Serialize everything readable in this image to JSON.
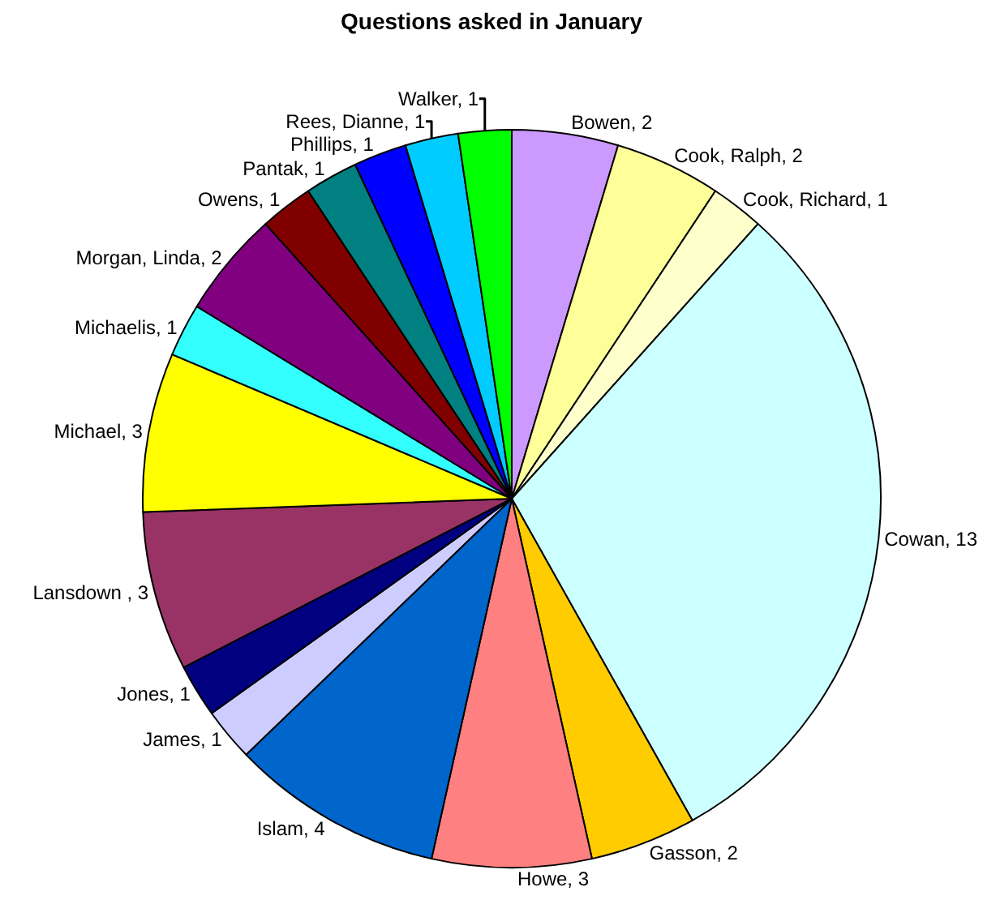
{
  "chart_data": {
    "type": "pie",
    "title": "Questions asked in January",
    "categories": [
      "Bowen, 2",
      "Cook, Ralph, 2",
      "Cook, Richard, 1",
      "Cowan, 13",
      "Gasson, 2",
      "Howe, 3",
      "Islam, 4",
      "James, 1",
      "Jones, 1",
      "Lansdown , 3",
      "Michael, 3",
      "Michaelis, 1",
      "Morgan, Linda, 2",
      "Owens, 1",
      "Pantak, 1",
      "Phillips, 1",
      "Rees, Dianne, 1",
      "Walker, 1"
    ],
    "values": [
      2,
      2,
      1,
      13,
      2,
      3,
      4,
      1,
      1,
      3,
      3,
      1,
      2,
      1,
      1,
      1,
      1,
      1
    ],
    "colors": [
      "#cc99ff",
      "#ffff99",
      "#ffffcc",
      "#ccffff",
      "#ffcc00",
      "#ff8080",
      "#0066cc",
      "#ccccff",
      "#000080",
      "#993366",
      "#ffff00",
      "#33ffff",
      "#800080",
      "#800000",
      "#008080",
      "#0000ff",
      "#00ccff",
      "#00ff00"
    ]
  }
}
